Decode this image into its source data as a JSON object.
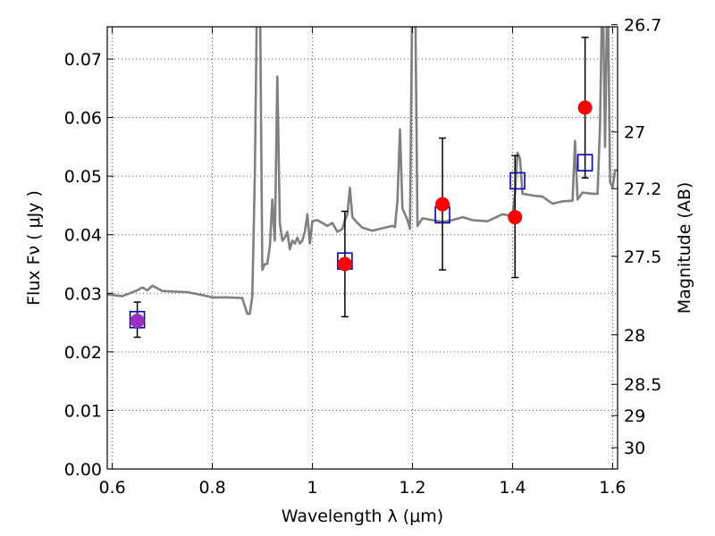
{
  "chart_data": {
    "type": "scatter",
    "title": "",
    "xlabel": "Wavelength  λ (μm)",
    "ylabel": "Flux  Fν  ( μJy )",
    "ylabel_right": "Magnitude (AB)",
    "xlim": [
      0.59,
      1.61
    ],
    "ylim": [
      0.0,
      0.0755
    ],
    "grid": true,
    "x_ticks": [
      {
        "value": 0.6,
        "label": "0.6"
      },
      {
        "value": 0.8,
        "label": "0.8"
      },
      {
        "value": 1.0,
        "label": "1"
      },
      {
        "value": 1.2,
        "label": "1.2"
      },
      {
        "value": 1.4,
        "label": "1.4"
      },
      {
        "value": 1.6,
        "label": "1.6"
      }
    ],
    "y_ticks": [
      {
        "value": 0.0,
        "label": "0.00"
      },
      {
        "value": 0.01,
        "label": "0.01"
      },
      {
        "value": 0.02,
        "label": "0.02"
      },
      {
        "value": 0.03,
        "label": "0.03"
      },
      {
        "value": 0.04,
        "label": "0.04"
      },
      {
        "value": 0.05,
        "label": "0.05"
      },
      {
        "value": 0.06,
        "label": "0.06"
      },
      {
        "value": 0.07,
        "label": "0.07"
      }
    ],
    "y2_ticks": [
      {
        "mag": 26.7,
        "label": "26.7"
      },
      {
        "mag": 27,
        "label": "27"
      },
      {
        "mag": 27.2,
        "label": "27.2"
      },
      {
        "mag": 27.5,
        "label": "27.5"
      },
      {
        "mag": 28,
        "label": "28"
      },
      {
        "mag": 28.5,
        "label": "28.5"
      },
      {
        "mag": 29,
        "label": "29"
      },
      {
        "mag": 30,
        "label": "30"
      }
    ],
    "model_spectrum": {
      "color": "#808080",
      "x": [
        0.59,
        0.62,
        0.65,
        0.66,
        0.67,
        0.68,
        0.7,
        0.72,
        0.75,
        0.78,
        0.8,
        0.83,
        0.86,
        0.87,
        0.875,
        0.88,
        0.885,
        0.89,
        0.895,
        0.9,
        0.905,
        0.91,
        0.915,
        0.92,
        0.925,
        0.93,
        0.935,
        0.94,
        0.945,
        0.95,
        0.955,
        0.96,
        0.965,
        0.97,
        0.975,
        0.98,
        0.985,
        0.99,
        0.995,
        1.0,
        1.01,
        1.02,
        1.03,
        1.04,
        1.05,
        1.06,
        1.065,
        1.07,
        1.075,
        1.08,
        1.09,
        1.1,
        1.12,
        1.14,
        1.16,
        1.165,
        1.17,
        1.175,
        1.18,
        1.19,
        1.195,
        1.2,
        1.205,
        1.21,
        1.22,
        1.24,
        1.26,
        1.28,
        1.3,
        1.32,
        1.35,
        1.38,
        1.4,
        1.405,
        1.41,
        1.415,
        1.42,
        1.44,
        1.46,
        1.48,
        1.5,
        1.52,
        1.525,
        1.53,
        1.54,
        1.56,
        1.57,
        1.575,
        1.58,
        1.585,
        1.59,
        1.595,
        1.6,
        1.605,
        1.61
      ],
      "y": [
        0.0298,
        0.0295,
        0.0305,
        0.031,
        0.0305,
        0.0313,
        0.0304,
        0.0303,
        0.0302,
        0.0297,
        0.0293,
        0.0293,
        0.0292,
        0.0265,
        0.0265,
        0.0295,
        0.05,
        0.085,
        0.085,
        0.034,
        0.035,
        0.035,
        0.038,
        0.046,
        0.039,
        0.067,
        0.042,
        0.039,
        0.0395,
        0.0405,
        0.0375,
        0.039,
        0.0385,
        0.0395,
        0.0385,
        0.039,
        0.0405,
        0.0435,
        0.0385,
        0.0423,
        0.0425,
        0.042,
        0.0415,
        0.042,
        0.0405,
        0.041,
        0.0425,
        0.0435,
        0.048,
        0.043,
        0.042,
        0.0412,
        0.0407,
        0.0411,
        0.0415,
        0.0413,
        0.0458,
        0.058,
        0.0445,
        0.0425,
        0.041,
        0.085,
        0.085,
        0.0415,
        0.0428,
        0.0425,
        0.0422,
        0.0425,
        0.043,
        0.0425,
        0.0423,
        0.0435,
        0.0432,
        0.047,
        0.054,
        0.053,
        0.047,
        0.0467,
        0.0465,
        0.0453,
        0.0457,
        0.0458,
        0.056,
        0.046,
        0.0472,
        0.047,
        0.047,
        0.059,
        0.085,
        0.055,
        0.085,
        0.049,
        0.048,
        0.051,
        0.051
      ]
    },
    "series": [
      {
        "name": "",
        "marker": "open-square",
        "color": "#0000cc",
        "x": [
          0.65,
          1.065,
          1.26,
          1.41,
          1.545
        ],
        "y": [
          0.0255,
          0.0355,
          0.0434,
          0.0492,
          0.0523
        ]
      },
      {
        "name": "",
        "marker": "filled-circle",
        "color": "#ff0000",
        "x": [
          0.65,
          1.065,
          1.26,
          1.405,
          1.545
        ],
        "y": [
          0.0253,
          0.035,
          0.0452,
          0.043,
          0.0617
        ],
        "yerr_low": [
          0.0028,
          0.009,
          0.0112,
          0.0103,
          0.012
        ],
        "yerr_high": [
          0.0032,
          0.009,
          0.0113,
          0.0105,
          0.012
        ],
        "colors": [
          "#9b30c0",
          "#ff0000",
          "#ff0000",
          "#ff0000",
          "#ff0000"
        ]
      }
    ]
  }
}
